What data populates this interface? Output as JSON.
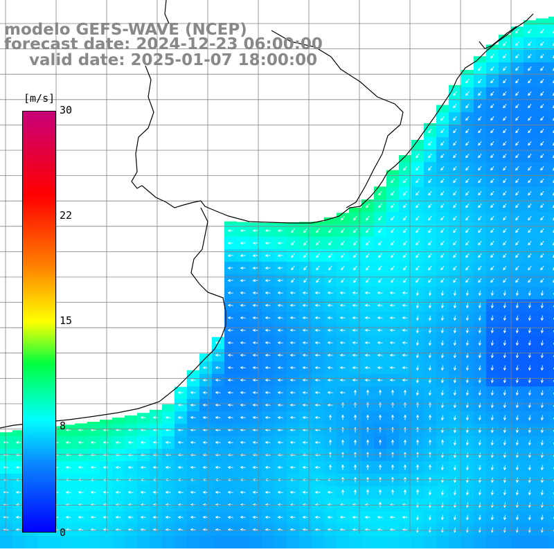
{
  "header": {
    "model": "modelo GEFS-WAVE (NCEP)",
    "forecast": "forecast date: 2024-12-23 06:00:00",
    "valid": "valid date: 2025-01-07 18:00:00"
  },
  "colorbar": {
    "unit": "[m/s]",
    "ticks": [
      "30",
      "22",
      "15",
      "8",
      "0"
    ],
    "tick_values": [
      30,
      22,
      15,
      8,
      0
    ],
    "stops": [
      {
        "v": 0,
        "c": "#0000ff"
      },
      {
        "v": 5,
        "c": "#0a8cff"
      },
      {
        "v": 8,
        "c": "#00ffff"
      },
      {
        "v": 12,
        "c": "#00ff40"
      },
      {
        "v": 15,
        "c": "#ffff00"
      },
      {
        "v": 19,
        "c": "#ff8000"
      },
      {
        "v": 24,
        "c": "#ff0000"
      },
      {
        "v": 30,
        "c": "#c8007a"
      }
    ]
  },
  "map_style": {
    "land": "#ffffff",
    "coast": "#000000",
    "grid": "#808080",
    "arrows": "#ffffff"
  }
}
